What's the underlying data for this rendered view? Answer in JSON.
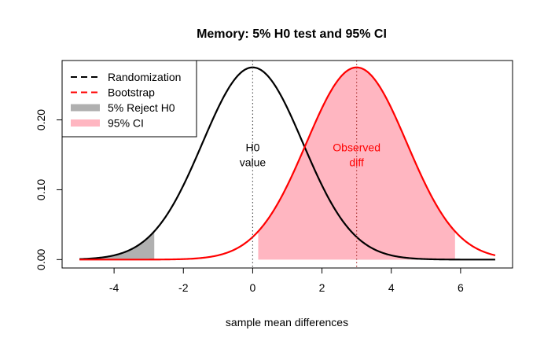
{
  "chart_data": {
    "type": "line",
    "title": "Memory: 5% H0 test and 95% CI",
    "xlabel": "sample mean differences",
    "ylabel": "",
    "xlim": [
      -5.5,
      7.5
    ],
    "ylim": [
      -0.012,
      0.285
    ],
    "x_ticks": [
      -4,
      -2,
      0,
      2,
      4,
      6
    ],
    "x_tick_labels": [
      "-4",
      "-2",
      "0",
      "2",
      "4",
      "6"
    ],
    "y_ticks": [
      0.0,
      0.1,
      0.2
    ],
    "y_tick_labels": [
      "0.00",
      "0.10",
      "0.20"
    ],
    "grid": false,
    "legend_position": "top-left",
    "series": [
      {
        "name": "Randomization",
        "kind": "normal-density",
        "mean": 0,
        "sd": 1.45,
        "x_range": [
          -5,
          7
        ],
        "color": "#000000"
      },
      {
        "name": "Bootstrap",
        "kind": "normal-density",
        "mean": 3.0,
        "sd": 1.45,
        "x_range": [
          -5,
          7
        ],
        "color": "#ff0000"
      }
    ],
    "shaded_regions": [
      {
        "name": "5% Reject H0",
        "color": "#b0b0b0",
        "under": "Randomization",
        "ranges": [
          [
            -5,
            -2.84
          ],
          [
            2.84,
            7
          ]
        ]
      },
      {
        "name": "95% CI",
        "color": "#ffb6c1",
        "under": "Bootstrap",
        "ranges": [
          [
            0.16,
            5.84
          ]
        ]
      }
    ],
    "reference_lines": [
      {
        "x": 0,
        "style": "dotted",
        "color": "#555555"
      },
      {
        "x": 3.0,
        "style": "dotted",
        "color": "#b04040"
      }
    ],
    "annotations": [
      {
        "lines": [
          "H0",
          "value"
        ],
        "x": 0,
        "y": 0.155,
        "color": "#000000"
      },
      {
        "lines": [
          "Observed",
          "diff"
        ],
        "x": 3.0,
        "y": 0.155,
        "color": "#ff0000"
      }
    ],
    "legend": [
      {
        "label": "Randomization",
        "style": "dashed",
        "color": "#000000"
      },
      {
        "label": "Bootstrap",
        "style": "dashed",
        "color": "#ff0000"
      },
      {
        "label": "5% Reject H0",
        "style": "thick",
        "color": "#b0b0b0"
      },
      {
        "label": "95% CI",
        "style": "thick",
        "color": "#ffb6c1"
      }
    ]
  }
}
